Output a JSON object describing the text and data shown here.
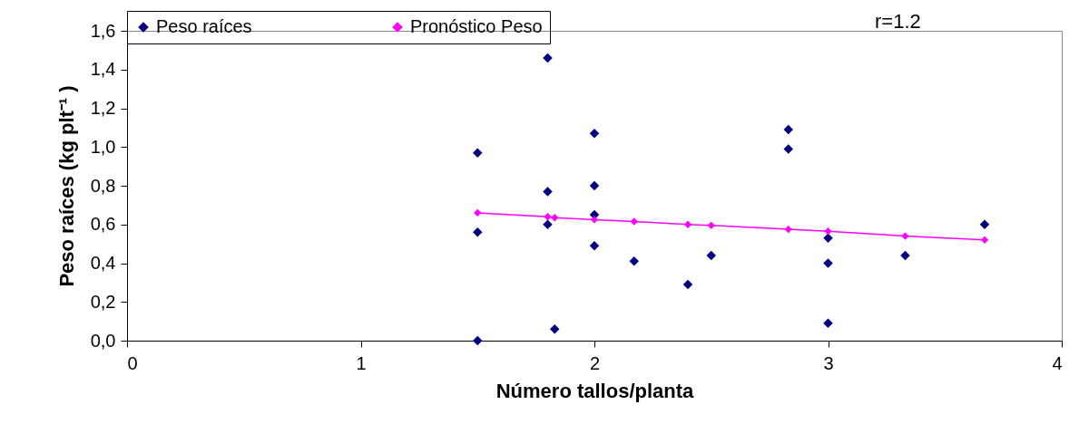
{
  "chart_data": {
    "type": "scatter",
    "xlabel": "Número tallos/planta",
    "ylabel": "Peso raíces (kg plt⁻¹ )",
    "xlim": [
      0,
      4
    ],
    "xticks": [
      0,
      1,
      2,
      3,
      4
    ],
    "ylim": [
      0,
      1.6
    ],
    "yticks": [
      {
        "value": 0,
        "label": "0,0"
      },
      {
        "value": 0.2,
        "label": "0,2"
      },
      {
        "value": 0.4,
        "label": "0,4"
      },
      {
        "value": 0.6,
        "label": "0,6"
      },
      {
        "value": 0.8,
        "label": "0,8"
      },
      {
        "value": 1.0,
        "label": "1,0"
      },
      {
        "value": 1.2,
        "label": "1,2"
      },
      {
        "value": 1.4,
        "label": "1,4"
      },
      {
        "value": 1.6,
        "label": "1,6"
      }
    ],
    "marker": "diamond",
    "legend": "top",
    "annotations": [
      "r=1.2"
    ],
    "series": [
      {
        "name": "Peso raíces",
        "color": "#000080",
        "x": [
          1.5,
          1.5,
          1.5,
          1.8,
          1.8,
          1.8,
          1.83,
          2.0,
          2.0,
          2.0,
          2.0,
          2.17,
          2.4,
          2.5,
          2.83,
          2.83,
          3.0,
          3.0,
          3.0,
          3.33,
          3.67
        ],
        "values": [
          0.97,
          0.56,
          0.0,
          1.46,
          0.77,
          0.6,
          0.06,
          1.07,
          0.8,
          0.65,
          0.49,
          0.41,
          0.29,
          0.44,
          1.09,
          0.99,
          0.53,
          0.4,
          0.09,
          0.44,
          0.6
        ]
      },
      {
        "name": "Pronóstico Peso",
        "type": "line",
        "line_style": "solid",
        "color": "#ff00ff",
        "x": [
          1.5,
          1.8,
          1.83,
          2.0,
          2.17,
          2.4,
          2.5,
          2.83,
          3.0,
          3.33,
          3.67
        ],
        "values": [
          0.66,
          0.64,
          0.635,
          0.625,
          0.615,
          0.6,
          0.595,
          0.575,
          0.565,
          0.54,
          0.52
        ]
      }
    ]
  }
}
